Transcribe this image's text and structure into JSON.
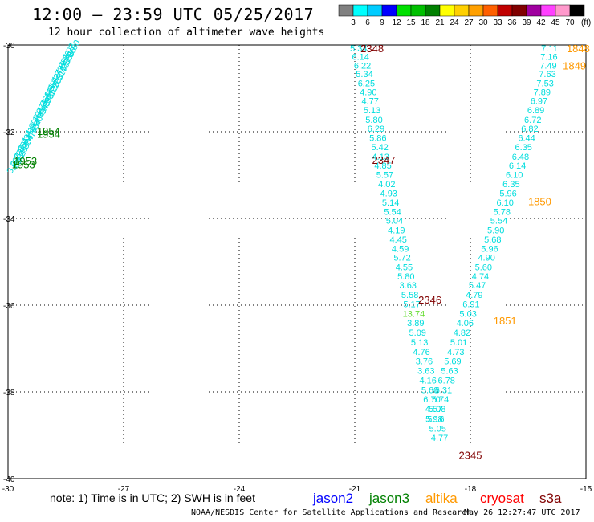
{
  "header": {
    "title": "12:00 – 23:59 UTC 05/25/2017",
    "subtitle": "12 hour collection of altimeter wave heights"
  },
  "colorbar": {
    "labels": [
      "3",
      "6",
      "9",
      "12",
      "15",
      "18",
      "21",
      "24",
      "27",
      "30",
      "33",
      "36",
      "39",
      "42",
      "45",
      "70"
    ],
    "unit": "(ft)",
    "colors": [
      "#808080",
      "#00ffff",
      "#00ccff",
      "#0000ff",
      "#00e000",
      "#00c000",
      "#008000",
      "#ffff00",
      "#ffd000",
      "#ffa000",
      "#ff6000",
      "#c00000",
      "#800000",
      "#a000a0",
      "#ff40ff",
      "#ff99cc",
      "#000000"
    ]
  },
  "note": "note: 1) Time is in UTC; 2) SWH is in feet",
  "legend": [
    {
      "name": "jason2",
      "color": "#0000ff"
    },
    {
      "name": "jason3",
      "color": "#008000"
    },
    {
      "name": "altika",
      "color": "#ff9900"
    },
    {
      "name": "cryosat",
      "color": "#ff0000"
    },
    {
      "name": "s3a",
      "color": "#800000"
    }
  ],
  "footer": {
    "credit": "NOAA/NESDIS Center for Satellite Applications and Research",
    "timestamp": "May 26 12:27:47 UTC 2017"
  },
  "chart_data": {
    "type": "scatter",
    "xlim": [
      -30,
      -15
    ],
    "ylim": [
      -40,
      -30
    ],
    "xticks": [
      "-30",
      "-27",
      "-24",
      "-21",
      "-18",
      "-15"
    ],
    "yticks": [
      "-30",
      "-32",
      "-34",
      "-36",
      "-38",
      "-40"
    ],
    "grid": true,
    "track_a": {
      "color": "#00dddd",
      "points": [
        {
          "x": -20.9,
          "y": -30.07,
          "v": "5.34"
        },
        {
          "x": -20.85,
          "y": -30.27,
          "v": "6.14"
        },
        {
          "x": -20.8,
          "y": -30.47,
          "v": "6.22"
        },
        {
          "x": -20.75,
          "y": -30.67,
          "v": "5.34"
        },
        {
          "x": -20.7,
          "y": -30.88,
          "v": "6.25"
        },
        {
          "x": -20.65,
          "y": -31.08,
          "v": "4.90"
        },
        {
          "x": -20.6,
          "y": -31.29,
          "v": "4.77"
        },
        {
          "x": -20.55,
          "y": -31.5,
          "v": "5.13"
        },
        {
          "x": -20.5,
          "y": -31.72,
          "v": "5.80"
        },
        {
          "x": -20.45,
          "y": -31.93,
          "v": "6.29"
        },
        {
          "x": -20.4,
          "y": -32.14,
          "v": "5.86"
        },
        {
          "x": -20.35,
          "y": -32.35,
          "v": "5.42"
        },
        {
          "x": -20.33,
          "y": -32.57,
          "v": "4.13"
        },
        {
          "x": -20.27,
          "y": -32.78,
          "v": "4.85"
        },
        {
          "x": -20.22,
          "y": -32.99,
          "v": "5.57"
        },
        {
          "x": -20.17,
          "y": -33.2,
          "v": "4.02"
        },
        {
          "x": -20.12,
          "y": -33.42,
          "v": "4.93"
        },
        {
          "x": -20.07,
          "y": -33.63,
          "v": "5.14"
        },
        {
          "x": -20.02,
          "y": -33.84,
          "v": "5.54"
        },
        {
          "x": -19.97,
          "y": -34.05,
          "v": "5.04"
        },
        {
          "x": -19.92,
          "y": -34.27,
          "v": "4.19"
        },
        {
          "x": -19.87,
          "y": -34.48,
          "v": "4.45"
        },
        {
          "x": -19.82,
          "y": -34.69,
          "v": "4.59"
        },
        {
          "x": -19.77,
          "y": -34.9,
          "v": "5.72"
        },
        {
          "x": -19.72,
          "y": -35.12,
          "v": "4.55"
        },
        {
          "x": -19.67,
          "y": -35.33,
          "v": "5.80"
        },
        {
          "x": -19.62,
          "y": -35.54,
          "v": "3.63"
        },
        {
          "x": -19.57,
          "y": -35.76,
          "v": "5.58"
        },
        {
          "x": -19.52,
          "y": -35.97,
          "v": "5.17"
        },
        {
          "x": -19.47,
          "y": -36.19,
          "v": "13.74",
          "c": "#66dd33"
        },
        {
          "x": -19.42,
          "y": -36.41,
          "v": "3.89"
        },
        {
          "x": -19.37,
          "y": -36.63,
          "v": "5.09"
        },
        {
          "x": -19.32,
          "y": -36.85,
          "v": "5.13"
        },
        {
          "x": -19.27,
          "y": -37.07,
          "v": "4.76"
        },
        {
          "x": -19.2,
          "y": -37.29,
          "v": "3.76"
        },
        {
          "x": -19.15,
          "y": -37.51,
          "v": "3.63"
        },
        {
          "x": -19.1,
          "y": -37.73,
          "v": "4.16"
        },
        {
          "x": -19.05,
          "y": -37.95,
          "v": "5.60"
        },
        {
          "x": -19.0,
          "y": -38.17,
          "v": "6.70"
        },
        {
          "x": -18.95,
          "y": -38.39,
          "v": "4.57"
        },
        {
          "x": -18.9,
          "y": -38.62,
          "v": "5.16"
        },
        {
          "x": -18.85,
          "y": -38.84,
          "v": "5.05"
        },
        {
          "x": -18.8,
          "y": -39.06,
          "v": "4.77"
        }
      ],
      "labels": [
        {
          "x": -20.55,
          "y": -30.07,
          "t": "2348"
        },
        {
          "x": -20.25,
          "y": -32.65,
          "t": "2347"
        },
        {
          "x": -19.05,
          "y": -35.87,
          "t": "2346"
        },
        {
          "x": -18.0,
          "y": -39.45,
          "t": "2345"
        }
      ]
    },
    "track_b": {
      "color": "#00dddd",
      "points": [
        {
          "x": -15.95,
          "y": -30.07,
          "v": "7.11"
        },
        {
          "x": -15.96,
          "y": -30.27,
          "v": "7.16"
        },
        {
          "x": -15.98,
          "y": -30.47,
          "v": "7.49"
        },
        {
          "x": -16.0,
          "y": -30.67,
          "v": "7.63"
        },
        {
          "x": -16.06,
          "y": -30.88,
          "v": "7.53"
        },
        {
          "x": -16.14,
          "y": -31.08,
          "v": "7.89"
        },
        {
          "x": -16.22,
          "y": -31.29,
          "v": "6.97"
        },
        {
          "x": -16.3,
          "y": -31.5,
          "v": "6.89"
        },
        {
          "x": -16.38,
          "y": -31.72,
          "v": "6.72"
        },
        {
          "x": -16.46,
          "y": -31.93,
          "v": "6.82"
        },
        {
          "x": -16.54,
          "y": -32.14,
          "v": "6.44"
        },
        {
          "x": -16.62,
          "y": -32.35,
          "v": "6.35"
        },
        {
          "x": -16.7,
          "y": -32.57,
          "v": "6.48"
        },
        {
          "x": -16.78,
          "y": -32.78,
          "v": "6.14"
        },
        {
          "x": -16.86,
          "y": -32.99,
          "v": "6.10"
        },
        {
          "x": -16.94,
          "y": -33.2,
          "v": "6.35"
        },
        {
          "x": -17.02,
          "y": -33.42,
          "v": "5.96"
        },
        {
          "x": -17.1,
          "y": -33.63,
          "v": "6.10"
        },
        {
          "x": -17.18,
          "y": -33.84,
          "v": "5.78"
        },
        {
          "x": -17.26,
          "y": -34.05,
          "v": "5.54"
        },
        {
          "x": -17.34,
          "y": -34.27,
          "v": "5.90"
        },
        {
          "x": -17.42,
          "y": -34.48,
          "v": "5.68"
        },
        {
          "x": -17.5,
          "y": -34.69,
          "v": "5.96"
        },
        {
          "x": -17.58,
          "y": -34.9,
          "v": "4.90"
        },
        {
          "x": -17.66,
          "y": -35.12,
          "v": "5.60"
        },
        {
          "x": -17.74,
          "y": -35.33,
          "v": "4.74"
        },
        {
          "x": -17.82,
          "y": -35.54,
          "v": "5.47"
        },
        {
          "x": -17.9,
          "y": -35.76,
          "v": "4.79"
        },
        {
          "x": -17.98,
          "y": -35.97,
          "v": "6.91"
        },
        {
          "x": -18.06,
          "y": -36.19,
          "v": "5.03"
        },
        {
          "x": -18.14,
          "y": -36.41,
          "v": "4.06"
        },
        {
          "x": -18.22,
          "y": -36.63,
          "v": "4.82"
        },
        {
          "x": -18.3,
          "y": -36.85,
          "v": "5.01"
        },
        {
          "x": -18.38,
          "y": -37.07,
          "v": "4.73"
        },
        {
          "x": -18.46,
          "y": -37.29,
          "v": "5.69"
        },
        {
          "x": -18.54,
          "y": -37.51,
          "v": "5.63"
        },
        {
          "x": -18.62,
          "y": -37.73,
          "v": "6.78"
        },
        {
          "x": -18.7,
          "y": -37.95,
          "v": "6.31"
        },
        {
          "x": -18.78,
          "y": -38.17,
          "v": "5.74"
        },
        {
          "x": -18.86,
          "y": -38.39,
          "v": "5.08"
        },
        {
          "x": -18.94,
          "y": -38.62,
          "v": "5.98"
        }
      ],
      "labels": [
        {
          "x": -15.2,
          "y": -30.07,
          "t": "1848"
        },
        {
          "x": -15.3,
          "y": -30.47,
          "t": "1849"
        },
        {
          "x": -16.2,
          "y": -33.6,
          "t": "1850"
        },
        {
          "x": -17.1,
          "y": -36.35,
          "t": "1851"
        }
      ]
    },
    "track_c": {
      "color": "#00dddd",
      "values": [
        "5.80",
        "5.66",
        "5.55",
        "5.42",
        "5.31",
        "5.20",
        "5.12",
        "4.98",
        "4.88",
        "4.79",
        "4.66",
        "4.58",
        "4.47",
        "4.38",
        "4.29",
        "4.20"
      ],
      "values2": [
        "5.02",
        "4.96",
        "4.85",
        "4.73",
        "4.62",
        "4.55",
        "4.44",
        "4.36",
        "4.27",
        "4.18",
        "4.09",
        "4.01",
        "3.93",
        "3.85",
        "3.77",
        "3.69"
      ],
      "start": {
        "x": -28.3,
        "y": -30.07
      },
      "end": {
        "x": -29.75,
        "y": -32.7
      },
      "labels": [
        {
          "x": -28.95,
          "y": -31.98,
          "t": "1954",
          "c": "#008000"
        },
        {
          "x": -28.95,
          "y": -32.05,
          "t": "1954",
          "c": "#008000"
        },
        {
          "x": -29.55,
          "y": -32.67,
          "t": "1953",
          "c": "#008000"
        },
        {
          "x": -29.6,
          "y": -32.75,
          "t": "1953",
          "c": "#008000"
        }
      ]
    }
  }
}
